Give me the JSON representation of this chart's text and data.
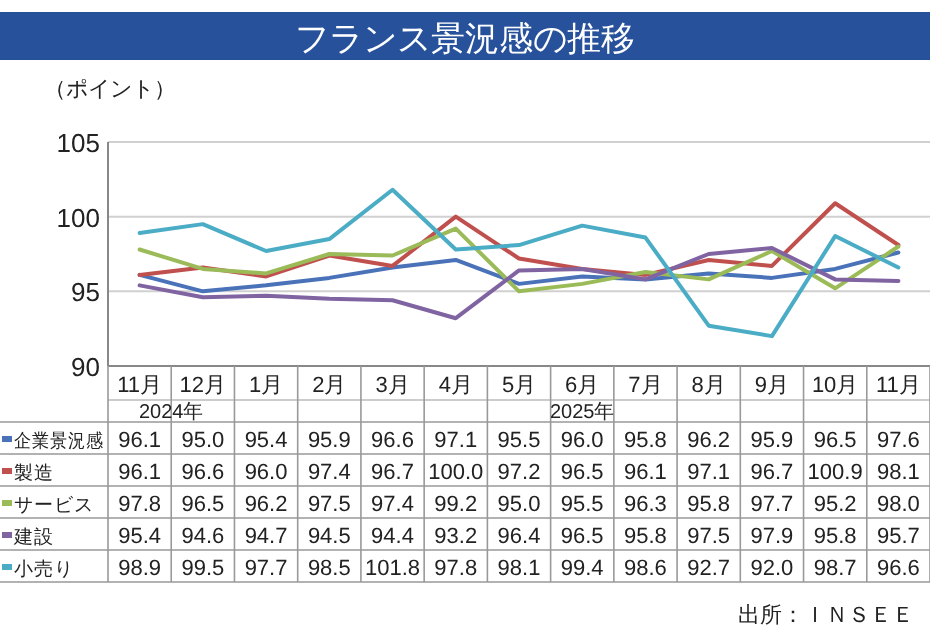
{
  "chart_data": {
    "type": "line",
    "title": "フランス景況感の推移",
    "ylabel": "（ポイント）",
    "categories": [
      "11月",
      "12月",
      "1月",
      "2月",
      "3月",
      "4月",
      "5月",
      "6月",
      "7月",
      "8月",
      "9月",
      "10月",
      "11月"
    ],
    "series": [
      {
        "name": "企業景況感",
        "color": "#4a72b8",
        "values": [
          96.1,
          95.0,
          95.4,
          95.9,
          96.6,
          97.1,
          95.5,
          96.0,
          95.8,
          96.2,
          95.9,
          96.5,
          97.6
        ],
        "value_labels": [
          "96.1",
          "95.0",
          "95.4",
          "95.9",
          "96.6",
          "97.1",
          "95.5",
          "96.0",
          "95.8",
          "96.2",
          "95.9",
          "96.5",
          "97.6"
        ]
      },
      {
        "name": "製造",
        "color": "#c0504d",
        "values": [
          96.1,
          96.6,
          96.0,
          97.4,
          96.7,
          100.0,
          97.2,
          96.5,
          96.1,
          97.1,
          96.7,
          100.9,
          98.1
        ],
        "value_labels": [
          "96.1",
          "96.6",
          "96.0",
          "97.4",
          "96.7",
          "100.0",
          "97.2",
          "96.5",
          "96.1",
          "97.1",
          "96.7",
          "100.9",
          "98.1"
        ]
      },
      {
        "name": "サービス",
        "color": "#9bbb59",
        "values": [
          97.8,
          96.5,
          96.2,
          97.5,
          97.4,
          99.2,
          95.0,
          95.5,
          96.3,
          95.8,
          97.7,
          95.2,
          98.0
        ],
        "value_labels": [
          "97.8",
          "96.5",
          "96.2",
          "97.5",
          "97.4",
          "99.2",
          "95.0",
          "95.5",
          "96.3",
          "95.8",
          "97.7",
          "95.2",
          "98.0"
        ]
      },
      {
        "name": "建設",
        "color": "#8064a2",
        "values": [
          95.4,
          94.6,
          94.7,
          94.5,
          94.4,
          93.2,
          96.4,
          96.5,
          95.8,
          97.5,
          97.9,
          95.8,
          95.7
        ],
        "value_labels": [
          "95.4",
          "94.6",
          "94.7",
          "94.5",
          "94.4",
          "93.2",
          "96.4",
          "96.5",
          "95.8",
          "97.5",
          "97.9",
          "95.8",
          "95.7"
        ]
      },
      {
        "name": "小売り",
        "color": "#4bacc6",
        "values": [
          98.9,
          99.5,
          97.7,
          98.5,
          101.8,
          97.8,
          98.1,
          99.4,
          98.6,
          92.7,
          92.0,
          98.7,
          96.6
        ],
        "value_labels": [
          "98.9",
          "99.5",
          "97.7",
          "98.5",
          "101.8",
          "97.8",
          "98.1",
          "99.4",
          "98.6",
          "92.7",
          "92.0",
          "98.7",
          "96.6"
        ]
      }
    ],
    "ylim": [
      90,
      105
    ],
    "yticks": [
      90,
      95,
      100,
      105
    ],
    "grid": "y",
    "legend": "bottom",
    "annotations": [
      "2024年",
      "2025年",
      "出所：ＩＮＳＥＥ"
    ]
  }
}
